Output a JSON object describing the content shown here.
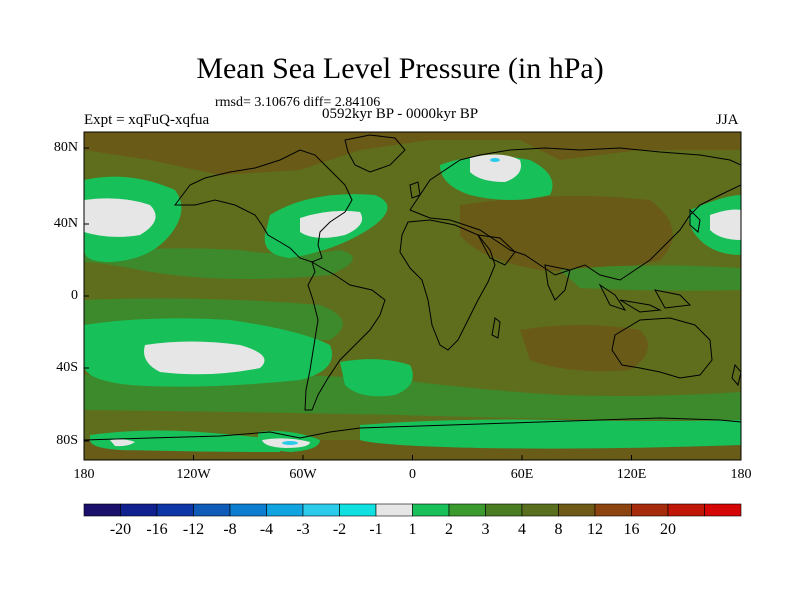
{
  "title": "Mean Sea Level Pressure (in hPa)",
  "stats": "rmsd= 3.10676 diff= 2.84106",
  "experiment": "Expt = xqFuQ-xqfua",
  "period": "0592kyr BP - 0000kyr BP",
  "season": "JJA",
  "lat_labels": [
    "80N",
    "40N",
    "0",
    "40S",
    "80S"
  ],
  "lon_labels": [
    "180",
    "120W",
    "60W",
    "0",
    "60E",
    "120E",
    "180"
  ],
  "colorbar": {
    "labels": [
      "-20",
      "-16",
      "-12",
      "-8",
      "-4",
      "-3",
      "-2",
      "-1",
      "1",
      "2",
      "3",
      "4",
      "8",
      "12",
      "16",
      "20"
    ],
    "colors": [
      "#1a0f6b",
      "#10208e",
      "#0d36a6",
      "#0f5bb8",
      "#0d7ecf",
      "#10a4e0",
      "#2ccbea",
      "#10e0e0",
      "#e6e6e6",
      "#18c05a",
      "#3b9a2e",
      "#4a7d22",
      "#5a6f1e",
      "#6e5a16",
      "#8c4410",
      "#a62a0c",
      "#c01608",
      "#d40606"
    ]
  },
  "map_colors": {
    "background": "#5e6e1c",
    "green": "#3d8a2c",
    "bright": "#18c05a",
    "white": "#e6e6e6",
    "brown": "#6a5a18",
    "coast": "#000000"
  }
}
